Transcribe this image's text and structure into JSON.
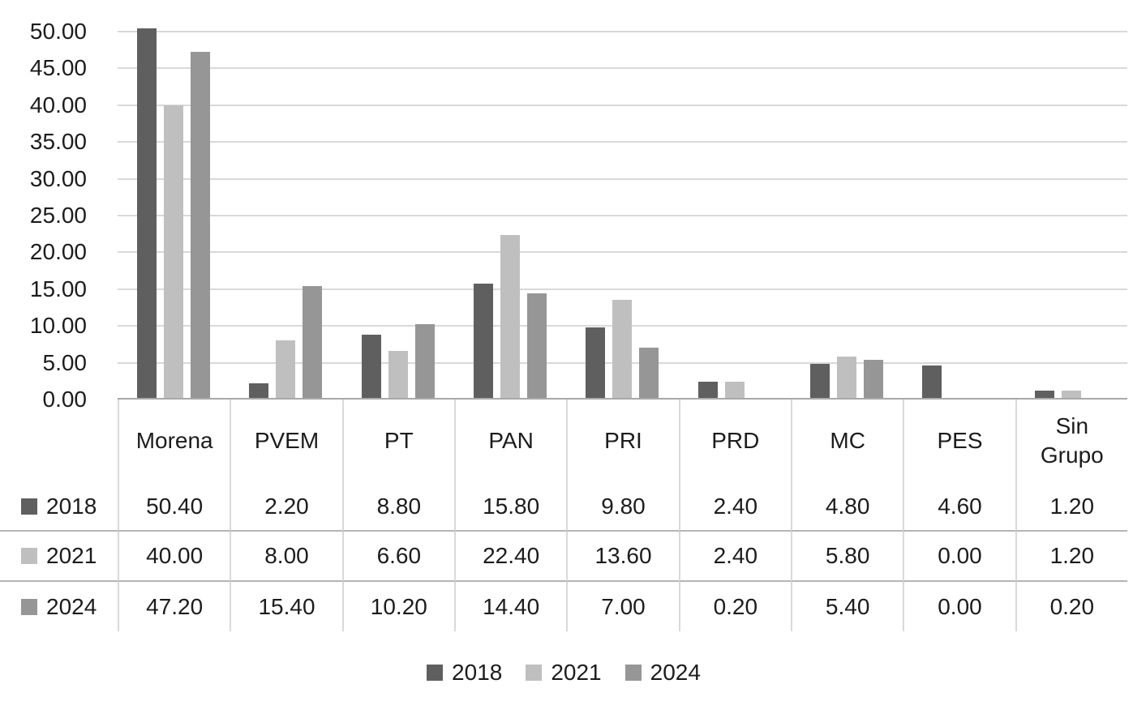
{
  "chart_data": {
    "type": "bar",
    "title": "",
    "xlabel": "",
    "ylabel": "",
    "categories": [
      "Morena",
      "PVEM",
      "PT",
      "PAN",
      "PRI",
      "PRD",
      "MC",
      "PES",
      "Sin Grupo"
    ],
    "series": [
      {
        "name": "2018",
        "color": "#5f5f5f",
        "values": [
          50.4,
          2.2,
          8.8,
          15.8,
          9.8,
          2.4,
          4.8,
          4.6,
          1.2
        ]
      },
      {
        "name": "2021",
        "color": "#bfbfbf",
        "values": [
          40.0,
          8.0,
          6.6,
          22.4,
          13.6,
          2.4,
          5.8,
          0.0,
          1.2
        ]
      },
      {
        "name": "2024",
        "color": "#969696",
        "values": [
          47.2,
          15.4,
          10.2,
          14.4,
          7.0,
          0.2,
          5.4,
          0.0,
          0.2
        ]
      }
    ],
    "ylim": [
      0,
      50
    ],
    "ytick_step": 5,
    "y_tick_labels": [
      "50.00",
      "45.00",
      "40.00",
      "35.00",
      "30.00",
      "25.00",
      "20.00",
      "15.00",
      "10.00",
      "5.00",
      "0.00"
    ],
    "grid": true,
    "legend_position": "bottom",
    "gridline_color": "#d9d9d9",
    "axis_line_color": "#a9a9a9"
  },
  "data_table": {
    "corner_label": "",
    "col_headers": [
      "Morena",
      "PVEM",
      "PT",
      "PAN",
      "PRI",
      "PRD",
      "MC",
      "PES",
      "Sin Grupo"
    ],
    "rows": [
      {
        "header": "2018",
        "swatch_color": "#5f5f5f",
        "values": [
          "50.40",
          "2.20",
          "8.80",
          "15.80",
          "9.80",
          "2.40",
          "4.80",
          "4.60",
          "1.20"
        ]
      },
      {
        "header": "2021",
        "swatch_color": "#bfbfbf",
        "values": [
          "40.00",
          "8.00",
          "6.60",
          "22.40",
          "13.60",
          "2.40",
          "5.80",
          "0.00",
          "1.20"
        ]
      },
      {
        "header": "2024",
        "swatch_color": "#969696",
        "values": [
          "47.20",
          "15.40",
          "10.20",
          "14.40",
          "7.00",
          "0.20",
          "5.40",
          "0.00",
          "0.20"
        ]
      }
    ]
  },
  "legend": {
    "items": [
      {
        "label": "2018",
        "color": "#5f5f5f"
      },
      {
        "label": "2021",
        "color": "#bfbfbf"
      },
      {
        "label": "2024",
        "color": "#969696"
      }
    ]
  }
}
